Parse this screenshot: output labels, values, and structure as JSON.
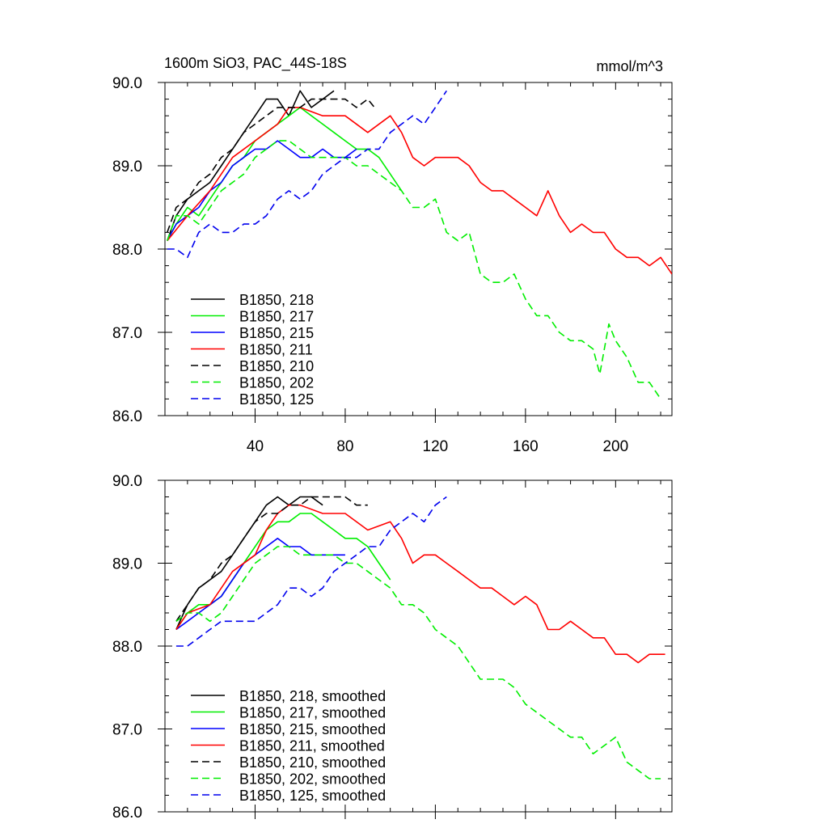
{
  "chart_data": [
    {
      "type": "line",
      "title": "1600m SiO3, PAC_44S-18S",
      "units": "mmol/m^3",
      "xlabel": "",
      "ylabel": "",
      "xlim": [
        0,
        225
      ],
      "ylim": [
        86.0,
        90.0
      ],
      "xticks": [
        40,
        80,
        120,
        160,
        200
      ],
      "xtick_labels": [
        "40",
        "80",
        "120",
        "160",
        "200"
      ],
      "yticks": [
        86.0,
        87.0,
        88.0,
        89.0,
        90.0
      ],
      "ytick_labels": [
        "86.0",
        "87.0",
        "88.0",
        "89.0",
        "90.0"
      ],
      "legend_position": "bottom-left",
      "series": [
        {
          "name": "B1850, 218",
          "color": "#000000",
          "dash": "solid",
          "x": [
            1,
            5,
            10,
            15,
            20,
            25,
            30,
            35,
            40,
            45,
            50,
            55,
            60,
            65,
            70,
            75
          ],
          "y": [
            88.1,
            88.4,
            88.6,
            88.7,
            88.8,
            89.0,
            89.2,
            89.4,
            89.6,
            89.8,
            89.8,
            89.6,
            89.9,
            89.7,
            89.8,
            89.9
          ]
        },
        {
          "name": "B1850, 217",
          "color": "#00ee00",
          "dash": "solid",
          "x": [
            1,
            5,
            10,
            15,
            20,
            25,
            30,
            35,
            40,
            45,
            50,
            55,
            60,
            65,
            70,
            75,
            80,
            85,
            90,
            95,
            100,
            105
          ],
          "y": [
            88.1,
            88.3,
            88.5,
            88.4,
            88.6,
            88.8,
            89.0,
            89.1,
            89.3,
            89.4,
            89.5,
            89.6,
            89.7,
            89.6,
            89.5,
            89.4,
            89.3,
            89.2,
            89.2,
            89.1,
            88.9,
            88.7
          ]
        },
        {
          "name": "B1850, 215",
          "color": "#0000ff",
          "dash": "solid",
          "x": [
            1,
            5,
            10,
            15,
            20,
            25,
            30,
            35,
            40,
            45,
            50,
            55,
            60,
            65,
            70,
            75,
            80,
            85
          ],
          "y": [
            88.1,
            88.3,
            88.4,
            88.5,
            88.7,
            88.8,
            89.0,
            89.1,
            89.2,
            89.2,
            89.3,
            89.2,
            89.1,
            89.1,
            89.2,
            89.1,
            89.1,
            89.2
          ]
        },
        {
          "name": "B1850, 211",
          "color": "#ff0000",
          "dash": "solid",
          "x": [
            1,
            10,
            20,
            30,
            40,
            50,
            55,
            60,
            70,
            80,
            90,
            100,
            105,
            110,
            115,
            120,
            130,
            135,
            140,
            145,
            150,
            155,
            160,
            165,
            170,
            175,
            180,
            185,
            190,
            195,
            200,
            205,
            210,
            215,
            220,
            225
          ],
          "y": [
            88.1,
            88.4,
            88.7,
            89.1,
            89.3,
            89.5,
            89.7,
            89.7,
            89.6,
            89.6,
            89.4,
            89.6,
            89.4,
            89.1,
            89.0,
            89.1,
            89.1,
            89.0,
            88.8,
            88.7,
            88.7,
            88.6,
            88.5,
            88.4,
            88.7,
            88.4,
            88.2,
            88.3,
            88.2,
            88.2,
            88.0,
            87.9,
            87.9,
            87.8,
            87.9,
            87.7
          ]
        },
        {
          "name": "B1850, 210",
          "color": "#000000",
          "dash": "dashed",
          "x": [
            1,
            5,
            10,
            15,
            20,
            25,
            30,
            35,
            40,
            45,
            50,
            55,
            60,
            65,
            70,
            75,
            80,
            85,
            90,
            93
          ],
          "y": [
            88.2,
            88.5,
            88.6,
            88.8,
            88.9,
            89.1,
            89.2,
            89.4,
            89.5,
            89.6,
            89.7,
            89.7,
            89.7,
            89.8,
            89.8,
            89.8,
            89.8,
            89.7,
            89.8,
            89.7
          ]
        },
        {
          "name": "B1850, 202",
          "color": "#00ee00",
          "dash": "dashed",
          "x": [
            1,
            5,
            10,
            15,
            20,
            25,
            30,
            35,
            40,
            45,
            50,
            55,
            60,
            65,
            70,
            75,
            80,
            85,
            90,
            95,
            100,
            105,
            110,
            115,
            120,
            125,
            130,
            135,
            140,
            145,
            150,
            155,
            160,
            165,
            170,
            175,
            180,
            185,
            190,
            193,
            197,
            200,
            205,
            210,
            215,
            220
          ],
          "y": [
            88.1,
            88.4,
            88.4,
            88.3,
            88.5,
            88.7,
            88.8,
            88.9,
            89.1,
            89.2,
            89.3,
            89.3,
            89.2,
            89.1,
            89.1,
            89.1,
            89.1,
            89.0,
            89.0,
            88.9,
            88.8,
            88.7,
            88.5,
            88.5,
            88.6,
            88.2,
            88.1,
            88.2,
            87.7,
            87.6,
            87.6,
            87.7,
            87.4,
            87.2,
            87.2,
            87.0,
            86.9,
            86.9,
            86.8,
            86.5,
            87.1,
            86.9,
            86.7,
            86.4,
            86.4,
            86.2
          ]
        },
        {
          "name": "B1850, 125",
          "color": "#0000ee",
          "dash": "dashed",
          "x": [
            1,
            5,
            10,
            15,
            20,
            25,
            30,
            35,
            40,
            45,
            50,
            55,
            60,
            65,
            70,
            75,
            80,
            85,
            90,
            95,
            100,
            105,
            110,
            115,
            120,
            125
          ],
          "y": [
            88.0,
            88.0,
            87.9,
            88.2,
            88.3,
            88.2,
            88.2,
            88.3,
            88.3,
            88.4,
            88.6,
            88.7,
            88.6,
            88.7,
            88.9,
            89.0,
            89.1,
            89.1,
            89.2,
            89.2,
            89.4,
            89.5,
            89.6,
            89.5,
            89.7,
            89.9
          ]
        }
      ]
    },
    {
      "type": "line",
      "title": "",
      "xlabel": "",
      "ylabel": "",
      "xlim": [
        0,
        225
      ],
      "ylim": [
        86.0,
        90.0
      ],
      "xticks": [
        40,
        80,
        120,
        160,
        200
      ],
      "xtick_labels": [],
      "yticks": [
        86.0,
        87.0,
        88.0,
        89.0,
        90.0
      ],
      "ytick_labels": [
        "86.0",
        "87.0",
        "88.0",
        "89.0",
        "90.0"
      ],
      "legend_position": "bottom-left",
      "series": [
        {
          "name": "B1850, 218, smoothed",
          "color": "#000000",
          "dash": "solid",
          "x": [
            5,
            10,
            15,
            20,
            25,
            30,
            35,
            40,
            45,
            50,
            55,
            60,
            65,
            70
          ],
          "y": [
            88.2,
            88.5,
            88.7,
            88.8,
            88.9,
            89.1,
            89.3,
            89.5,
            89.7,
            89.8,
            89.7,
            89.8,
            89.8,
            89.7
          ]
        },
        {
          "name": "B1850, 217, smoothed",
          "color": "#00ee00",
          "dash": "solid",
          "x": [
            5,
            10,
            15,
            20,
            25,
            30,
            35,
            40,
            45,
            50,
            55,
            60,
            65,
            70,
            75,
            80,
            85,
            90,
            95,
            100
          ],
          "y": [
            88.2,
            88.4,
            88.5,
            88.5,
            88.6,
            88.8,
            89.0,
            89.2,
            89.4,
            89.5,
            89.5,
            89.6,
            89.6,
            89.5,
            89.4,
            89.3,
            89.3,
            89.2,
            89.0,
            88.8
          ]
        },
        {
          "name": "B1850, 215, smoothed",
          "color": "#0000ff",
          "dash": "solid",
          "x": [
            5,
            10,
            15,
            20,
            25,
            30,
            35,
            40,
            45,
            50,
            55,
            60,
            65,
            70,
            75,
            80
          ],
          "y": [
            88.2,
            88.3,
            88.4,
            88.5,
            88.6,
            88.8,
            89.0,
            89.1,
            89.2,
            89.3,
            89.2,
            89.2,
            89.1,
            89.1,
            89.1,
            89.1
          ]
        },
        {
          "name": "B1850, 211, smoothed",
          "color": "#ff0000",
          "dash": "solid",
          "x": [
            5,
            10,
            20,
            30,
            40,
            45,
            50,
            55,
            60,
            70,
            80,
            90,
            100,
            105,
            110,
            115,
            120,
            125,
            130,
            135,
            140,
            145,
            150,
            155,
            160,
            165,
            170,
            175,
            180,
            185,
            190,
            195,
            200,
            205,
            210,
            215,
            220,
            222
          ],
          "y": [
            88.2,
            88.4,
            88.5,
            88.9,
            89.1,
            89.4,
            89.6,
            89.7,
            89.7,
            89.6,
            89.6,
            89.4,
            89.5,
            89.3,
            89.0,
            89.1,
            89.1,
            89.0,
            88.9,
            88.8,
            88.7,
            88.7,
            88.6,
            88.5,
            88.6,
            88.5,
            88.2,
            88.2,
            88.3,
            88.2,
            88.1,
            88.1,
            87.9,
            87.9,
            87.8,
            87.9,
            87.9,
            87.9
          ]
        },
        {
          "name": "B1850, 210, smoothed",
          "color": "#000000",
          "dash": "dashed",
          "x": [
            5,
            10,
            15,
            20,
            25,
            30,
            35,
            40,
            45,
            50,
            55,
            60,
            65,
            70,
            75,
            80,
            85,
            90
          ],
          "y": [
            88.3,
            88.5,
            88.7,
            88.8,
            89.0,
            89.1,
            89.3,
            89.5,
            89.6,
            89.6,
            89.7,
            89.7,
            89.8,
            89.8,
            89.8,
            89.8,
            89.7,
            89.7
          ]
        },
        {
          "name": "B1850, 202, smoothed",
          "color": "#00ee00",
          "dash": "dashed",
          "x": [
            5,
            10,
            15,
            20,
            25,
            30,
            35,
            40,
            45,
            50,
            55,
            60,
            65,
            70,
            75,
            80,
            85,
            90,
            95,
            100,
            105,
            110,
            115,
            120,
            125,
            130,
            135,
            140,
            145,
            150,
            155,
            160,
            165,
            170,
            175,
            180,
            185,
            190,
            195,
            200,
            205,
            210,
            215,
            220
          ],
          "y": [
            88.3,
            88.4,
            88.4,
            88.3,
            88.4,
            88.6,
            88.8,
            89.0,
            89.1,
            89.2,
            89.2,
            89.1,
            89.1,
            89.1,
            89.1,
            89.0,
            89.0,
            88.9,
            88.8,
            88.7,
            88.5,
            88.5,
            88.4,
            88.2,
            88.1,
            88.0,
            87.8,
            87.6,
            87.6,
            87.6,
            87.5,
            87.3,
            87.2,
            87.1,
            87.0,
            86.9,
            86.9,
            86.7,
            86.8,
            86.9,
            86.6,
            86.5,
            86.4,
            86.4
          ]
        },
        {
          "name": "B1850, 125, smoothed",
          "color": "#0000ee",
          "dash": "dashed",
          "x": [
            5,
            10,
            15,
            20,
            25,
            30,
            35,
            40,
            45,
            50,
            55,
            60,
            65,
            70,
            75,
            80,
            85,
            90,
            95,
            100,
            105,
            110,
            115,
            120,
            125
          ],
          "y": [
            88.0,
            88.0,
            88.1,
            88.2,
            88.3,
            88.3,
            88.3,
            88.3,
            88.4,
            88.5,
            88.7,
            88.7,
            88.6,
            88.7,
            88.9,
            89.0,
            89.1,
            89.2,
            89.2,
            89.4,
            89.5,
            89.6,
            89.5,
            89.7,
            89.8
          ]
        }
      ]
    }
  ]
}
